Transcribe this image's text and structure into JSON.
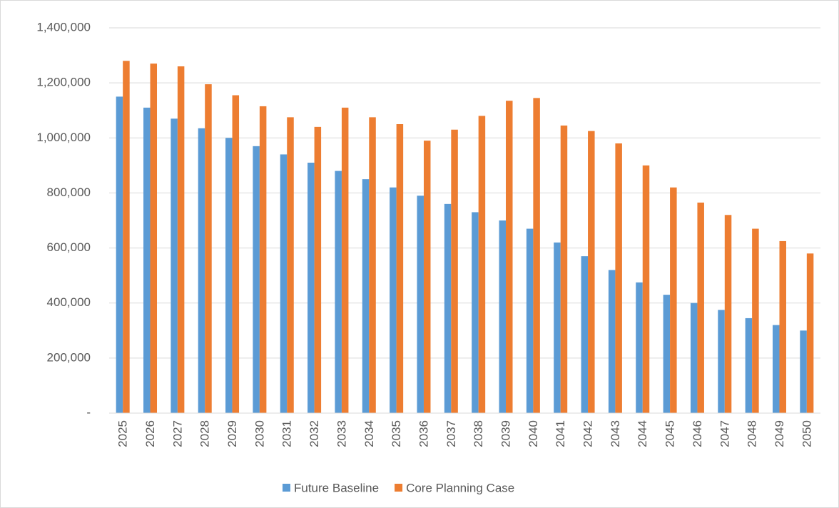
{
  "chart_data": {
    "type": "bar",
    "categories": [
      "2025",
      "2026",
      "2027",
      "2028",
      "2029",
      "2030",
      "2031",
      "2032",
      "2033",
      "2034",
      "2035",
      "2036",
      "2037",
      "2038",
      "2039",
      "2040",
      "2041",
      "2042",
      "2043",
      "2044",
      "2045",
      "2046",
      "2047",
      "2048",
      "2049",
      "2050"
    ],
    "series": [
      {
        "name": "Future Baseline",
        "color": "#5b9bd5",
        "values": [
          1150000,
          1110000,
          1070000,
          1035000,
          1000000,
          970000,
          940000,
          910000,
          880000,
          850000,
          820000,
          790000,
          760000,
          730000,
          700000,
          670000,
          620000,
          570000,
          520000,
          475000,
          430000,
          400000,
          375000,
          345000,
          320000,
          300000
        ]
      },
      {
        "name": "Core Planning Case",
        "color": "#ed7d31",
        "values": [
          1280000,
          1270000,
          1260000,
          1195000,
          1155000,
          1115000,
          1075000,
          1040000,
          1110000,
          1075000,
          1050000,
          990000,
          1030000,
          1080000,
          1135000,
          1145000,
          1045000,
          1025000,
          980000,
          900000,
          820000,
          765000,
          720000,
          670000,
          625000,
          580000
        ]
      }
    ],
    "ylim": [
      0,
      1400000
    ],
    "yticks": [
      {
        "value": 0,
        "label": "-"
      },
      {
        "value": 200000,
        "label": "200,000"
      },
      {
        "value": 400000,
        "label": "400,000"
      },
      {
        "value": 600000,
        "label": "600,000"
      },
      {
        "value": 800000,
        "label": "800,000"
      },
      {
        "value": 1000000,
        "label": "1,000,000"
      },
      {
        "value": 1200000,
        "label": "1,200,000"
      },
      {
        "value": 1400000,
        "label": "1,400,000"
      }
    ],
    "grid": true,
    "legend": "bottom"
  }
}
